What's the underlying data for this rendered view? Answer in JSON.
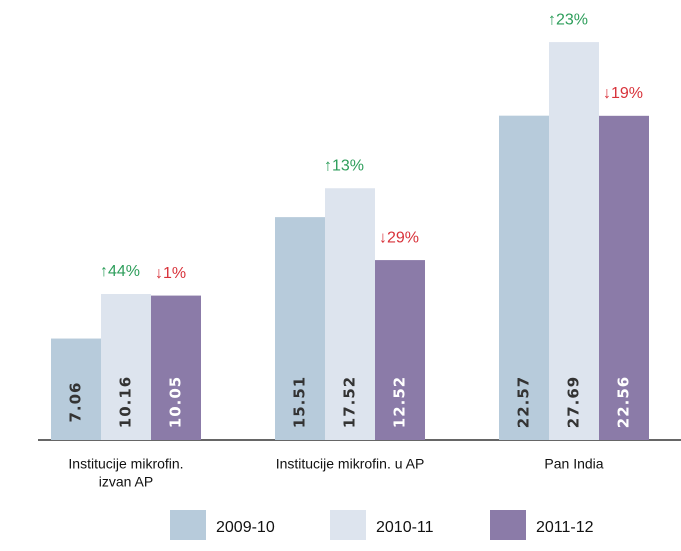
{
  "chart_data": {
    "type": "bar",
    "categories": [
      [
        "Institucije mikrofin.",
        "izvan AP"
      ],
      [
        "Institucije mikrofin. u AP"
      ],
      [
        "Pan India"
      ]
    ],
    "series": [
      {
        "name": "2009-10",
        "color": "#b7cbdb",
        "text_color": "#333333",
        "values": [
          7.06,
          15.51,
          22.57
        ]
      },
      {
        "name": "2010-11",
        "color": "#dde4ee",
        "text_color": "#333333",
        "values": [
          10.16,
          17.52,
          27.69
        ],
        "annotations": [
          "↑44%",
          "↑13%",
          "↑23%"
        ],
        "annotation_color": "#2e9e5b"
      },
      {
        "name": "2011-12",
        "color": "#8b7ba8",
        "text_color": "#ffffff",
        "values": [
          10.05,
          12.52,
          22.56
        ],
        "annotations": [
          "↓1%",
          "↓29%",
          "↓19%"
        ],
        "annotation_color": "#d8323a"
      }
    ]
  }
}
